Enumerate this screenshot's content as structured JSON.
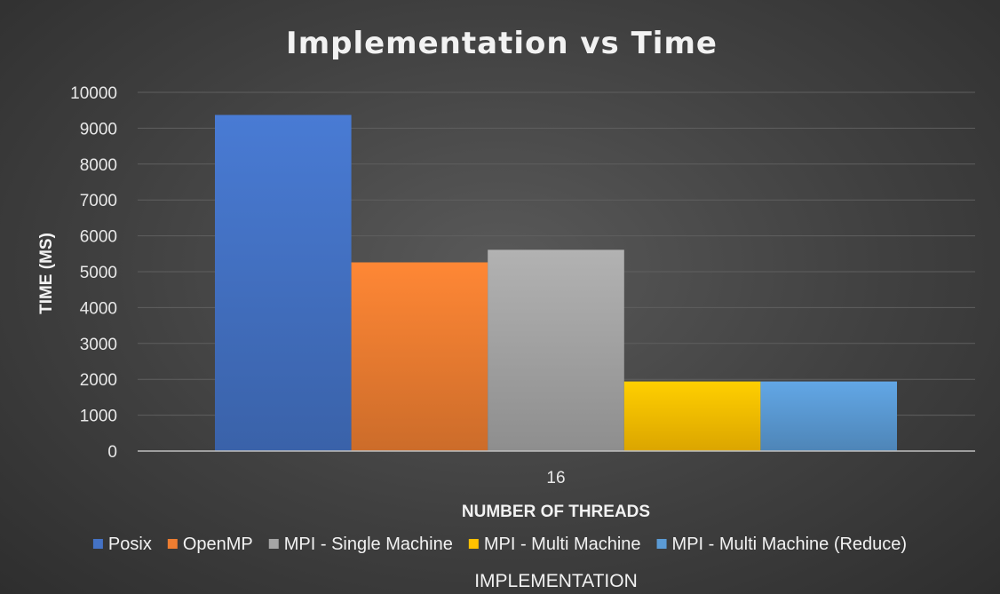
{
  "chart_data": {
    "type": "bar",
    "title": "Implementation vs Time",
    "xlabel": "NUMBER OF THREADS",
    "ylabel": "TIME (MS)",
    "legend_title": "IMPLEMENTATION",
    "categories": [
      "16"
    ],
    "ylim": [
      0,
      10000
    ],
    "yticks": [
      0,
      1000,
      2000,
      3000,
      4000,
      5000,
      6000,
      7000,
      8000,
      9000,
      10000
    ],
    "grid": true,
    "legend_position": "bottom",
    "series": [
      {
        "name": "Posix",
        "values": [
          9370
        ],
        "color": "#4472C4"
      },
      {
        "name": "OpenMP",
        "values": [
          5260
        ],
        "color": "#ED7D31"
      },
      {
        "name": "MPI - Single Machine",
        "values": [
          5610
        ],
        "color": "#A5A5A5"
      },
      {
        "name": "MPI - Multi Machine",
        "values": [
          1940
        ],
        "color": "#FFC000"
      },
      {
        "name": "MPI - Multi Machine (Reduce)",
        "values": [
          1940
        ],
        "color": "#5B9BD5"
      }
    ]
  }
}
